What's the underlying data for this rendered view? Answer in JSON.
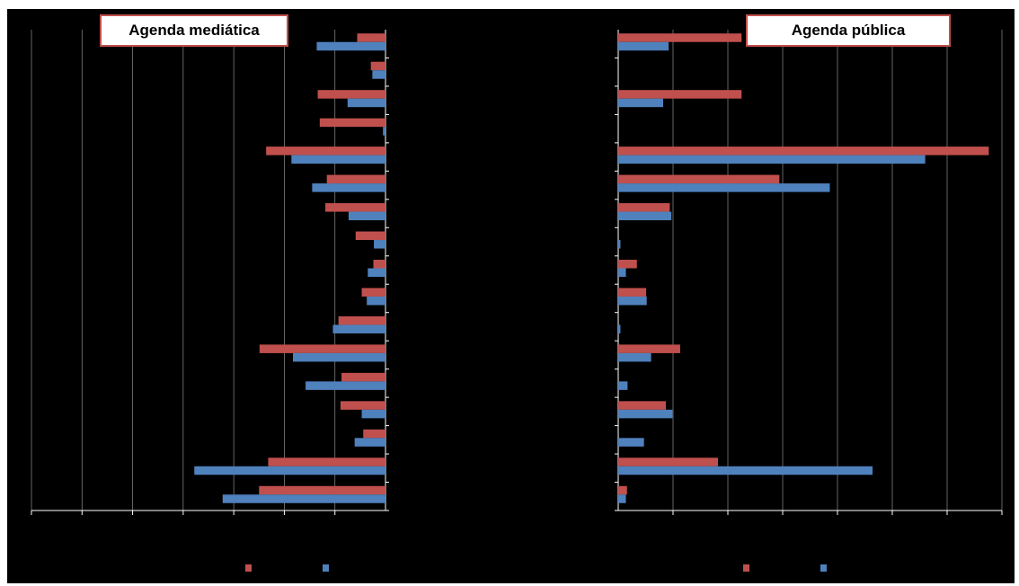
{
  "colors": {
    "background": "#000000",
    "series_1": "#c0504d",
    "series_2": "#4f81bd",
    "axis": "#ffffff",
    "grid": "#7f7f7f"
  },
  "chart_data": [
    {
      "type": "bar",
      "orientation": "horizontal",
      "title": "Agenda mediática",
      "direction": "extends-left-from-zero",
      "grid": true,
      "legend_placement": "bottom",
      "xlim": [
        -70,
        0
      ],
      "category_count": 17,
      "series": [
        {
          "values": [
            5.6,
            2.9,
            13.4,
            13.0,
            23.6,
            11.6,
            11.9,
            5.9,
            2.4,
            4.7,
            9.3,
            24.9,
            8.7,
            8.9,
            4.4,
            23.2,
            25.0
          ]
        },
        {
          "values": [
            13.6,
            2.6,
            7.5,
            0.5,
            18.6,
            14.5,
            7.3,
            2.3,
            3.5,
            3.7,
            10.4,
            18.3,
            15.8,
            4.7,
            6.1,
            37.8,
            32.2
          ]
        }
      ]
    },
    {
      "type": "bar",
      "orientation": "horizontal",
      "title": "Agenda pública",
      "direction": "extends-right-from-zero",
      "grid": true,
      "legend_placement": "bottom",
      "xlim": [
        0,
        70
      ],
      "category_count": 17,
      "series": [
        {
          "values": [
            22.5,
            0,
            22.5,
            0,
            67.6,
            29.4,
            9.4,
            0,
            3.4,
            5.1,
            0,
            11.3,
            0,
            8.7,
            0,
            18.2,
            1.6
          ]
        },
        {
          "values": [
            9.2,
            0,
            8.2,
            0,
            56.0,
            38.6,
            9.7,
            0.4,
            1.4,
            5.2,
            0.4,
            6.0,
            1.7,
            9.9,
            4.7,
            46.4,
            1.4
          ]
        }
      ]
    }
  ]
}
